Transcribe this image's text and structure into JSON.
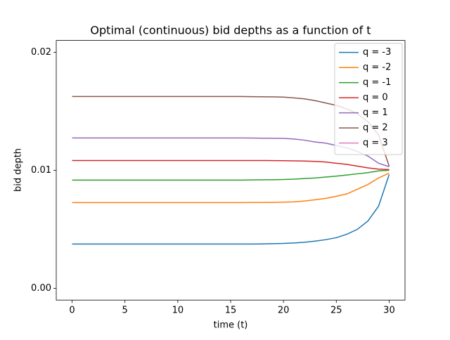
{
  "chart_data": {
    "type": "line",
    "title": "Optimal (continuous) bid depths as a function of t",
    "xlabel": "time (t)",
    "ylabel": "bid depth",
    "x": [
      0,
      1,
      2,
      3,
      4,
      5,
      6,
      7,
      8,
      9,
      10,
      11,
      12,
      13,
      14,
      15,
      16,
      17,
      18,
      19,
      20,
      21,
      22,
      23,
      24,
      25,
      26,
      27,
      28,
      29,
      30
    ],
    "series": [
      {
        "name": "q = -3",
        "color": "#1f77b4",
        "values": [
          0.00375,
          0.00375,
          0.00375,
          0.00375,
          0.00375,
          0.00375,
          0.00375,
          0.00375,
          0.00375,
          0.00375,
          0.00375,
          0.00375,
          0.00375,
          0.00375,
          0.00375,
          0.00375,
          0.00375,
          0.00375,
          0.00376,
          0.00378,
          0.0038,
          0.00384,
          0.0039,
          0.004,
          0.00412,
          0.00429,
          0.00458,
          0.005,
          0.00571,
          0.00696,
          0.00964
        ]
      },
      {
        "name": "q = -2",
        "color": "#ff7f0e",
        "values": [
          0.00726,
          0.00726,
          0.00726,
          0.00726,
          0.00726,
          0.00726,
          0.00726,
          0.00726,
          0.00726,
          0.00726,
          0.00726,
          0.00726,
          0.00726,
          0.00726,
          0.00726,
          0.00726,
          0.00726,
          0.00727,
          0.00727,
          0.00728,
          0.0073,
          0.00732,
          0.0074,
          0.0075,
          0.00762,
          0.0078,
          0.008,
          0.0084,
          0.0088,
          0.00935,
          0.00976
        ]
      },
      {
        "name": "q = -1",
        "color": "#2ca02c",
        "values": [
          0.00917,
          0.00917,
          0.00917,
          0.00917,
          0.00917,
          0.00917,
          0.00917,
          0.00917,
          0.00917,
          0.00917,
          0.00917,
          0.00917,
          0.00917,
          0.00917,
          0.00917,
          0.00917,
          0.00917,
          0.00918,
          0.00919,
          0.0092,
          0.00922,
          0.00925,
          0.0093,
          0.00935,
          0.00943,
          0.0095,
          0.0096,
          0.0097,
          0.0098,
          0.00995,
          0.01
        ]
      },
      {
        "name": "q = 0",
        "color": "#d62728",
        "values": [
          0.01083,
          0.01083,
          0.01083,
          0.01083,
          0.01083,
          0.01083,
          0.01083,
          0.01083,
          0.01083,
          0.01083,
          0.01083,
          0.01083,
          0.01083,
          0.01083,
          0.01083,
          0.01083,
          0.01083,
          0.01083,
          0.01083,
          0.01082,
          0.01081,
          0.0108,
          0.01078,
          0.01075,
          0.0107,
          0.0106,
          0.0105,
          0.01035,
          0.0102,
          0.0101,
          0.01006
        ]
      },
      {
        "name": "q = 1",
        "color": "#9467bd",
        "values": [
          0.01274,
          0.01274,
          0.01274,
          0.01274,
          0.01274,
          0.01274,
          0.01274,
          0.01274,
          0.01274,
          0.01274,
          0.01274,
          0.01274,
          0.01274,
          0.01274,
          0.01274,
          0.01274,
          0.01274,
          0.01273,
          0.01272,
          0.01271,
          0.0127,
          0.01265,
          0.01255,
          0.0124,
          0.0123,
          0.0121,
          0.0119,
          0.0116,
          0.0112,
          0.0106,
          0.0103
        ]
      },
      {
        "name": "q = 2",
        "color": "#8c564b",
        "values": [
          0.01625,
          0.01625,
          0.01625,
          0.01625,
          0.01625,
          0.01625,
          0.01625,
          0.01625,
          0.01625,
          0.01625,
          0.01625,
          0.01625,
          0.01625,
          0.01625,
          0.01625,
          0.01625,
          0.01625,
          0.01624,
          0.01623,
          0.01622,
          0.0162,
          0.01613,
          0.01605,
          0.0159,
          0.0157,
          0.0155,
          0.0152,
          0.0148,
          0.0141,
          0.013,
          0.01035
        ]
      },
      {
        "name": "q = 3",
        "color": "#e377c2",
        "values": [
          null,
          null,
          null,
          null,
          null,
          null,
          null,
          null,
          null,
          null,
          null,
          null,
          null,
          null,
          null,
          null,
          null,
          null,
          null,
          null,
          null,
          null,
          null,
          null,
          null,
          null,
          null,
          null,
          null,
          null,
          null
        ]
      }
    ],
    "xlim": [
      -1.5,
      31.5
    ],
    "xticks": [
      0,
      5,
      10,
      15,
      20,
      25,
      30
    ],
    "ylim": [
      -0.001,
      0.021
    ],
    "yticks": [
      {
        "value": 0,
        "label": "0.00"
      },
      {
        "value": 0.01,
        "label": "0.01"
      },
      {
        "value": 0.02,
        "label": "0.02"
      }
    ],
    "legend": "upper right"
  }
}
